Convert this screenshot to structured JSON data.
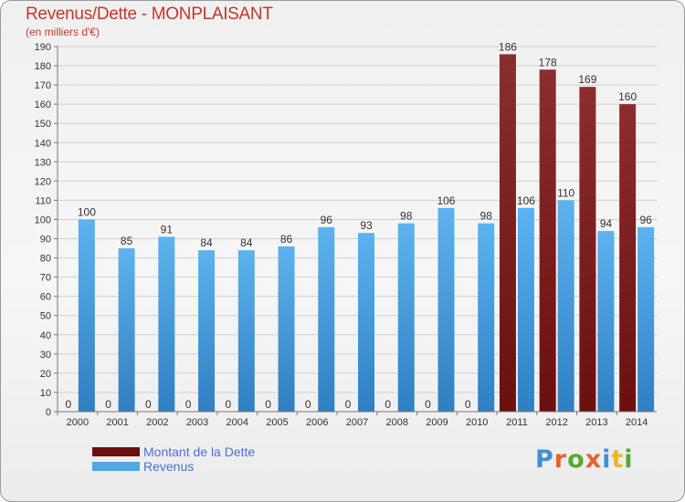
{
  "title": "Revenus/Dette - MONPLAISANT",
  "subtitle": "(en milliers d'€)",
  "legend": [
    {
      "label": "Montant de la Dette",
      "color": "#6b0f0f"
    },
    {
      "label": "Revenus",
      "color": "#4fa8e8"
    }
  ],
  "logo": {
    "text": "Proxiti",
    "colors": [
      "#3f8fd8",
      "#e8622a",
      "#5aa832",
      "#e8622a",
      "#3f8fd8",
      "#e8b82a",
      "#5aa832"
    ]
  },
  "chart_data": {
    "type": "bar",
    "title": "Revenus/Dette - MONPLAISANT",
    "subtitle": "(en milliers d'€)",
    "categories": [
      "2000",
      "2001",
      "2002",
      "2003",
      "2004",
      "2005",
      "2006",
      "2007",
      "2008",
      "2009",
      "2010",
      "2011",
      "2012",
      "2013",
      "2014"
    ],
    "series": [
      {
        "name": "Montant de la Dette",
        "color": "#6b0f0f",
        "values": [
          0,
          0,
          0,
          0,
          0,
          0,
          0,
          0,
          0,
          0,
          0,
          186,
          178,
          169,
          160
        ]
      },
      {
        "name": "Revenus",
        "color": "#4fa8e8",
        "values": [
          100,
          85,
          91,
          84,
          84,
          86,
          96,
          93,
          98,
          106,
          98,
          106,
          110,
          94,
          96
        ]
      }
    ],
    "ylim": [
      0,
      190
    ],
    "ytick_step": 10,
    "grid": true,
    "legend_position": "bottom-left"
  }
}
